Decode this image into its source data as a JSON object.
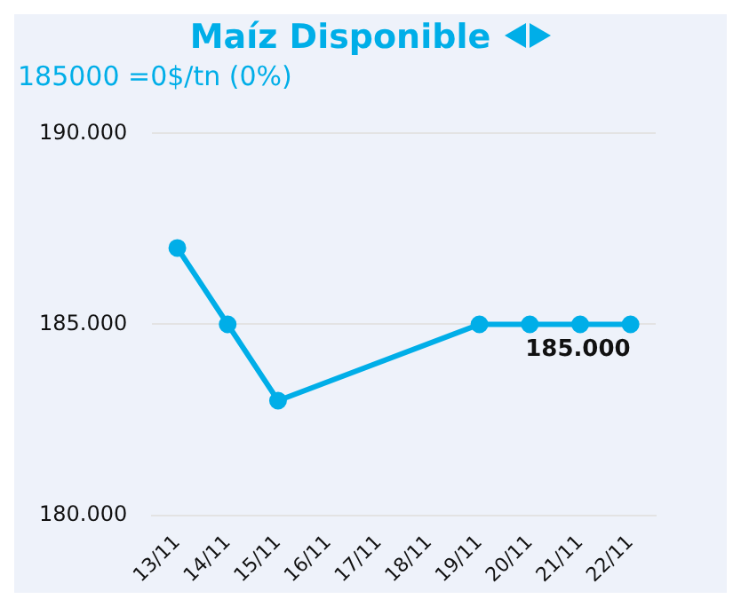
{
  "chart_data": {
    "type": "line",
    "title": "Maíz Disponible",
    "subtitle": "185000 =0$/tn (0%)",
    "categories": [
      "13/11",
      "14/11",
      "15/11",
      "16/11",
      "17/11",
      "18/11",
      "19/11",
      "20/11",
      "21/11",
      "22/11"
    ],
    "series": [
      {
        "color": "#00aee8",
        "values": [
          187000,
          185000,
          183000,
          null,
          null,
          null,
          185000,
          185000,
          185000,
          185000
        ],
        "value_labels": [
          null,
          null,
          null,
          null,
          null,
          null,
          null,
          null,
          null,
          "185.000"
        ]
      }
    ],
    "ylim": [
      180000,
      190000
    ],
    "yticks": [
      {
        "value": 180000,
        "label": "180.000"
      },
      {
        "value": 185000,
        "label": "185.000"
      },
      {
        "value": 190000,
        "label": "190.000"
      }
    ],
    "grid": "y",
    "legend": false,
    "marker": "circle",
    "line_style": "solid"
  }
}
